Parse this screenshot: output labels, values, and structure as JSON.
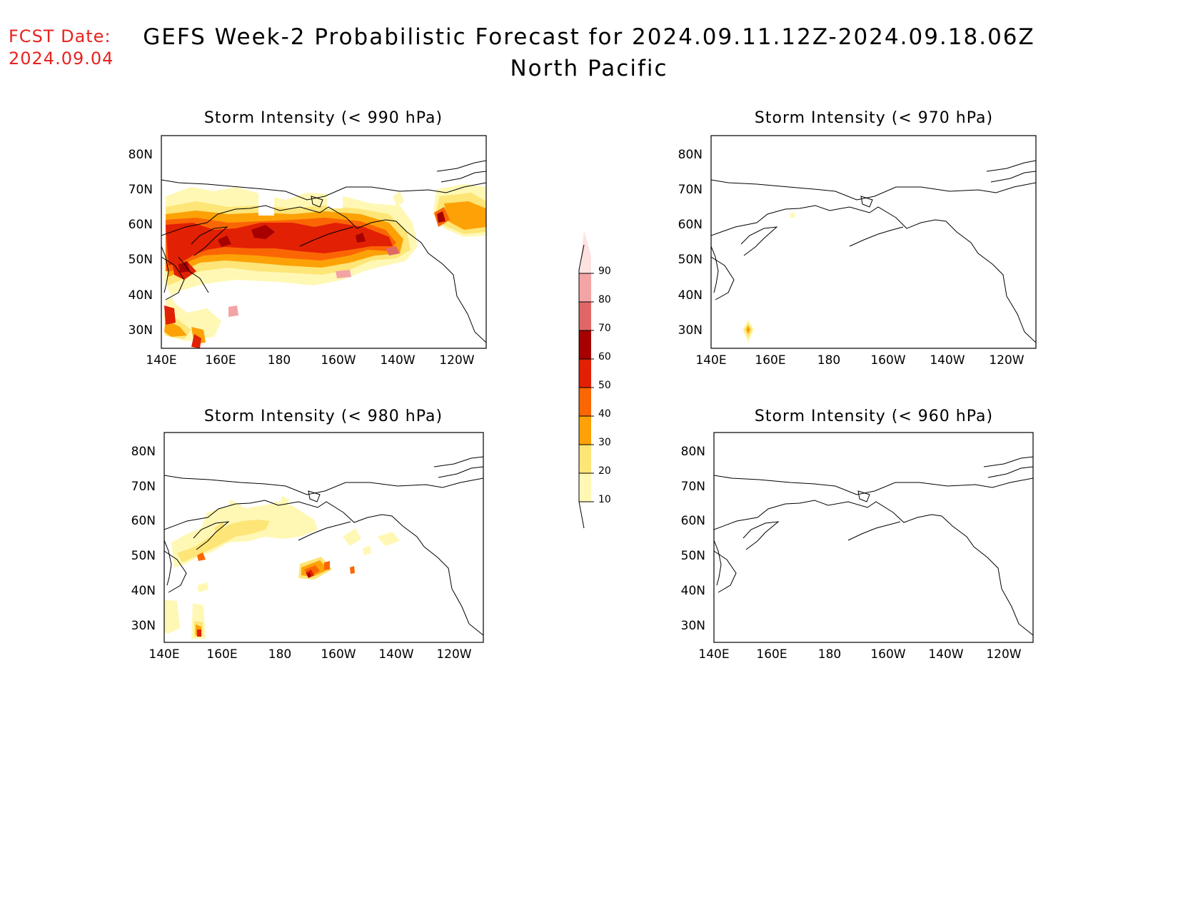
{
  "header": {
    "fcst_line1": "FCST Date:",
    "fcst_line2": "2024.09.04",
    "title_line1": "GEFS Week-2 Probabilistic Forecast for 2024.09.11.12Z-2024.09.18.06Z",
    "title_line2": "North Pacific",
    "label_color": "#e8231f"
  },
  "axes": {
    "lon_ticks": [
      "140E",
      "160E",
      "180",
      "160W",
      "140W",
      "120W"
    ],
    "lat_ticks": [
      "80N",
      "70N",
      "60N",
      "50N",
      "40N",
      "30N"
    ],
    "lon_range": [
      140,
      250
    ],
    "lat_range": [
      25,
      85
    ]
  },
  "panels": [
    {
      "id": "p990",
      "title": "Storm Intensity (< 990 hPa)"
    },
    {
      "id": "p970",
      "title": "Storm Intensity (< 970 hPa)"
    },
    {
      "id": "p980",
      "title": "Storm Intensity (< 980 hPa)"
    },
    {
      "id": "p960",
      "title": "Storm Intensity (< 960 hPa)"
    }
  ],
  "colorbar": {
    "levels": [
      "10",
      "20",
      "30",
      "40",
      "50",
      "60",
      "70",
      "80",
      "90"
    ],
    "colors": [
      "#fff8b5",
      "#fde577",
      "#fca207",
      "#fb6604",
      "#e22004",
      "#a60000",
      "#e16767",
      "#f4a4a4",
      "#fde2e2"
    ]
  }
}
